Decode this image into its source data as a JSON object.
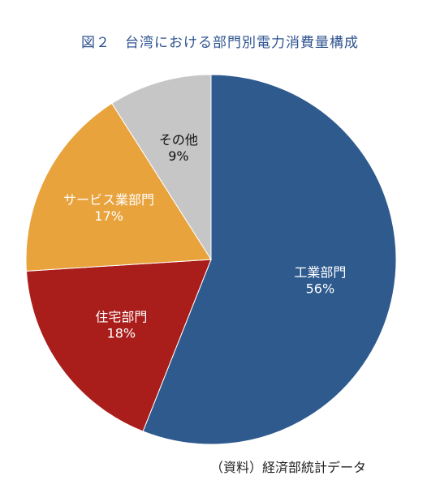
{
  "chart_data": {
    "type": "pie",
    "title": "図２　台湾における部門別電力消費量構成",
    "categories": [
      "工業部門",
      "住宅部門",
      "サービス業部門",
      "その他"
    ],
    "values": [
      56,
      18,
      17,
      9
    ],
    "value_labels": [
      "56%",
      "18%",
      "17%",
      "9%"
    ],
    "colors": [
      "#2e5a8e",
      "#a91d1b",
      "#e8a33d",
      "#c6c6c6"
    ],
    "label_colors": [
      "#ffffff",
      "#ffffff",
      "#ffffff",
      "#111111"
    ],
    "start": "12 o'clock",
    "direction": "clockwise",
    "legend": "none"
  },
  "source": "（資料）経済部統計データ"
}
